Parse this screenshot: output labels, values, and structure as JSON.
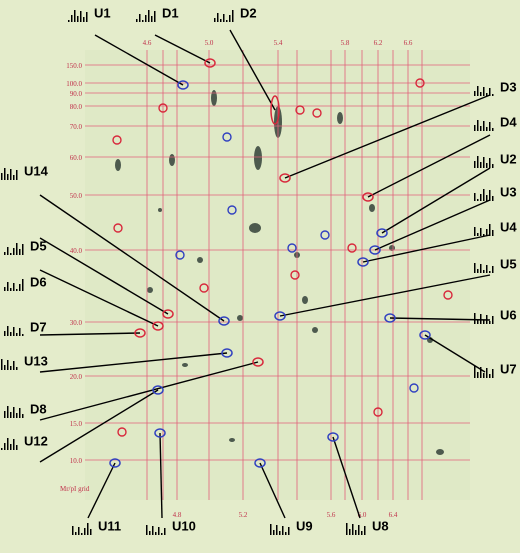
{
  "figure": {
    "top_axis": [
      "4.6",
      "5.0",
      "5.4",
      "5.8",
      "6.2",
      "6.6"
    ],
    "bottom_axis": [
      "4.8",
      "5.2",
      "5.6",
      "6.0",
      "6.4"
    ],
    "left_axis": [
      "150.0",
      "100.0",
      "90.0",
      "80.0",
      "70.0",
      "60.0",
      "50.0",
      "40.0",
      "30.0",
      "20.0",
      "15.0",
      "10.0"
    ],
    "grid_caption": "Mr/pI grid",
    "spots": [
      "U1",
      "D1",
      "D2",
      "D3",
      "D4",
      "U2",
      "U3",
      "U4",
      "U5",
      "U6",
      "U7",
      "U14",
      "D5",
      "D6",
      "D7",
      "U13",
      "D8",
      "U12",
      "U11",
      "U10",
      "U9",
      "U8"
    ]
  }
}
